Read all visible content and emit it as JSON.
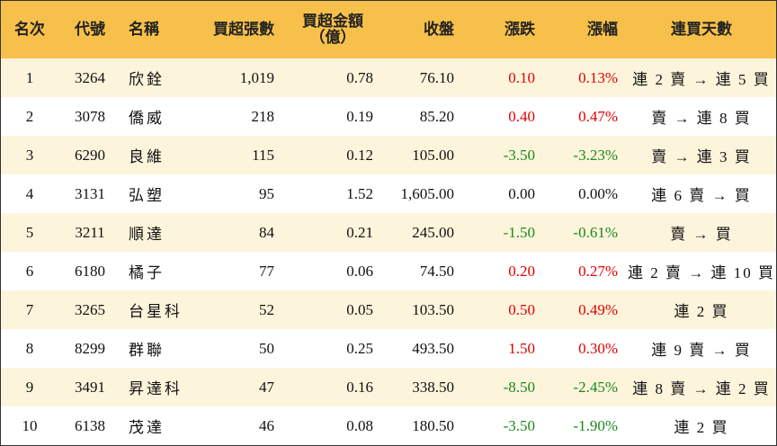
{
  "headers": {
    "rank": "名次",
    "code": "代號",
    "name": "名稱",
    "net_buy_lots": "買超張數",
    "net_buy_amount_line1": "買超金額",
    "net_buy_amount_line2": "（億）",
    "close": "收盤",
    "change": "漲跌",
    "change_pct": "漲幅",
    "streak": "連買天數"
  },
  "colors": {
    "header_bg": "#f7c04a",
    "odd_row_bg": "#fdf4dc",
    "up": "#e00000",
    "down": "#1a8a1a"
  },
  "rows": [
    {
      "rank": "1",
      "code": "3264",
      "name": "欣銓",
      "lots": "1,019",
      "amount": "0.78",
      "close": "76.10",
      "change": "0.10",
      "pct": "0.13%",
      "streak": "連 2 賣 → 連 5 買",
      "dir": "pos"
    },
    {
      "rank": "2",
      "code": "3078",
      "name": "僑威",
      "lots": "218",
      "amount": "0.19",
      "close": "85.20",
      "change": "0.40",
      "pct": "0.47%",
      "streak": "賣 → 連 8 買",
      "dir": "pos"
    },
    {
      "rank": "3",
      "code": "6290",
      "name": "良維",
      "lots": "115",
      "amount": "0.12",
      "close": "105.00",
      "change": "-3.50",
      "pct": "-3.23%",
      "streak": "賣 → 連 3 買",
      "dir": "neg"
    },
    {
      "rank": "4",
      "code": "3131",
      "name": "弘塑",
      "lots": "95",
      "amount": "1.52",
      "close": "1,605.00",
      "change": "0.00",
      "pct": "0.00%",
      "streak": "連 6 賣 → 買",
      "dir": "zero"
    },
    {
      "rank": "5",
      "code": "3211",
      "name": "順達",
      "lots": "84",
      "amount": "0.21",
      "close": "245.00",
      "change": "-1.50",
      "pct": "-0.61%",
      "streak": "賣 → 買",
      "dir": "neg"
    },
    {
      "rank": "6",
      "code": "6180",
      "name": "橘子",
      "lots": "77",
      "amount": "0.06",
      "close": "74.50",
      "change": "0.20",
      "pct": "0.27%",
      "streak": "連 2 賣 → 連 10 買",
      "dir": "pos"
    },
    {
      "rank": "7",
      "code": "3265",
      "name": "台星科",
      "lots": "52",
      "amount": "0.05",
      "close": "103.50",
      "change": "0.50",
      "pct": "0.49%",
      "streak": "連 2 買",
      "dir": "pos"
    },
    {
      "rank": "8",
      "code": "8299",
      "name": "群聯",
      "lots": "50",
      "amount": "0.25",
      "close": "493.50",
      "change": "1.50",
      "pct": "0.30%",
      "streak": "連 9 賣 → 買",
      "dir": "pos"
    },
    {
      "rank": "9",
      "code": "3491",
      "name": "昇達科",
      "lots": "47",
      "amount": "0.16",
      "close": "338.50",
      "change": "-8.50",
      "pct": "-2.45%",
      "streak": "連 8 賣 → 連 2 買",
      "dir": "neg"
    },
    {
      "rank": "10",
      "code": "6138",
      "name": "茂達",
      "lots": "46",
      "amount": "0.08",
      "close": "180.50",
      "change": "-3.50",
      "pct": "-1.90%",
      "streak": "連 2 買",
      "dir": "neg"
    }
  ]
}
